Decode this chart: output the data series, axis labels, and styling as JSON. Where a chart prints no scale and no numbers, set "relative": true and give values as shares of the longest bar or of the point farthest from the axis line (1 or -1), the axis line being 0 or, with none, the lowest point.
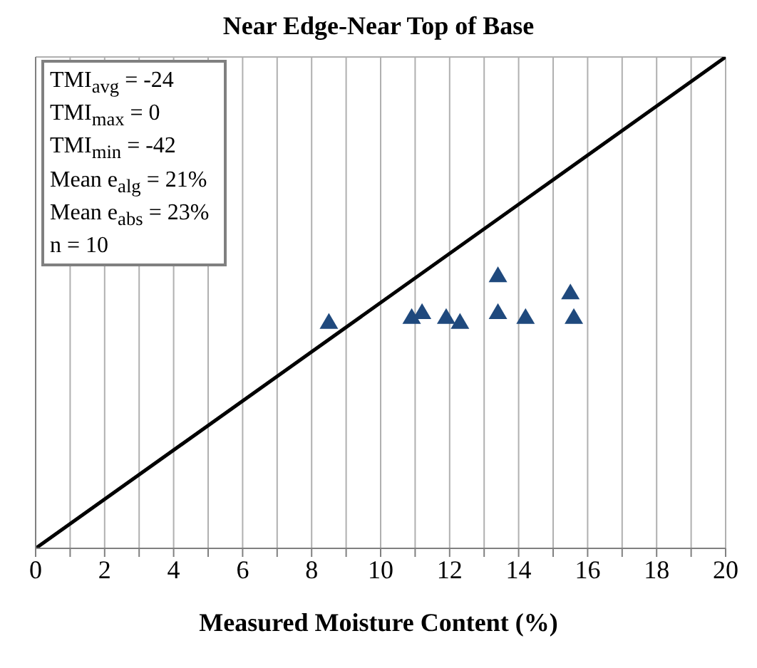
{
  "chart_data": {
    "type": "scatter",
    "title": "Near Edge-Near Top of Base",
    "xlabel": "Measured  Moisture Content (%)",
    "annotations": [
      "TMI$_{avg}$  = -24",
      "TMI$_{max}$ = 0",
      "TMI$_{min}$  = -42",
      "Mean e$_{alg}$ = 21%",
      "Mean e$_{abs}$ = 23%",
      "n = 10"
    ],
    "relative": true,
    "series": [
      {
        "color": "#1f497d",
        "marker": "triangle",
        "x": [
          8.5,
          10.9,
          11.2,
          11.9,
          12.3,
          13.4,
          13.4,
          14.2,
          15.5,
          15.6
        ],
        "values": [
          0.46,
          0.47,
          0.48,
          0.47,
          0.46,
          0.555,
          0.48,
          0.47,
          0.52,
          0.47
        ]
      },
      {
        "type": "line",
        "color": "#000000",
        "x": [
          0,
          20
        ],
        "values": [
          0,
          1
        ]
      }
    ],
    "xlim": [
      0,
      20
    ],
    "xticks": [
      0,
      {
        "value": 1,
        "label": null
      },
      2,
      {
        "value": 3,
        "label": null
      },
      4,
      {
        "value": 5,
        "label": null
      },
      6,
      {
        "value": 7,
        "label": null
      },
      8,
      {
        "value": 9,
        "label": null
      },
      10,
      {
        "value": 11,
        "label": null
      },
      12,
      {
        "value": 13,
        "label": null
      },
      14,
      {
        "value": 15,
        "label": null
      },
      16,
      {
        "value": 17,
        "label": null
      },
      18,
      {
        "value": 19,
        "label": null
      },
      20
    ],
    "tick_labels": "x",
    "grid": true
  }
}
